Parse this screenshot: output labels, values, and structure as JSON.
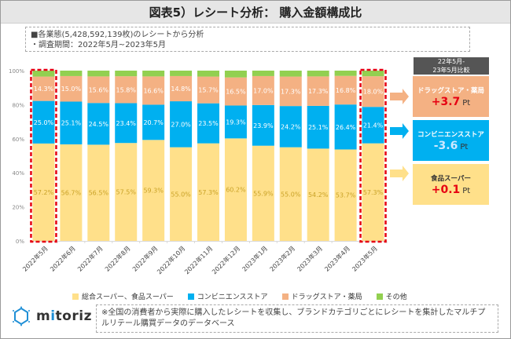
{
  "header": {
    "title": "図表5）レシート分析： 購入金額構成比"
  },
  "note": {
    "line1": "■各業態(5,428,592,139枚)のレシートから分析",
    "line2": "・調査期間：2022年5月~2023年5月"
  },
  "comparison": {
    "header_line1": "22年5月-",
    "header_line2": "23年5月比較",
    "items": [
      {
        "label": "ドラッグストア・薬局",
        "value": "+3.7",
        "unit": "Pt",
        "color": "#f4b183"
      },
      {
        "label": "コンビニエンスストア",
        "value": "-3.6",
        "unit": "Pt",
        "color": "#00b0f0"
      },
      {
        "label": "食品スーパー",
        "value": "+0.1",
        "unit": "Pt",
        "color": "#ffe08a"
      }
    ]
  },
  "footer": {
    "logo_text_pre": "m",
    "logo_text_i": "i",
    "logo_text_post": "toriz",
    "footnote": "※全国の消費者から実際に購入したレシートを収集し、ブランドカテゴリごとにレシートを集計したマルチプルリテール購買データのデータベース"
  },
  "chart_data": {
    "type": "bar",
    "stacked": true,
    "title": "購入金額構成比",
    "xlabel": "",
    "ylabel": "",
    "ylim": [
      0,
      100
    ],
    "yticks": [
      "0%",
      "20%",
      "40%",
      "60%",
      "80%",
      "100%"
    ],
    "categories": [
      "2022年5月",
      "2022年6月",
      "2022年7月",
      "2022年8月",
      "2022年9月",
      "2022年10月",
      "2022年11月",
      "2022年12月",
      "2023年1月",
      "2023年2月",
      "2023年3月",
      "2023年4月",
      "2023年5月"
    ],
    "highlighted": [
      "2022年5月",
      "2023年5月"
    ],
    "series": [
      {
        "name": "総合スーパー、食品スーパー",
        "color": "#ffe08a",
        "label_color": "#c9a227",
        "values": [
          57.2,
          56.7,
          56.5,
          57.5,
          59.3,
          55.0,
          57.3,
          60.2,
          55.9,
          55.0,
          54.2,
          53.7,
          57.3
        ]
      },
      {
        "name": "コンビニエンスストア",
        "color": "#00b0f0",
        "label_color": "#ffffff",
        "values": [
          25.0,
          25.1,
          24.5,
          23.4,
          20.7,
          27.0,
          23.5,
          19.3,
          23.9,
          24.2,
          25.1,
          26.4,
          21.4
        ]
      },
      {
        "name": "ドラッグストア・薬局",
        "color": "#f4b183",
        "label_color": "#ffffff",
        "values": [
          14.3,
          15.0,
          15.6,
          15.8,
          16.6,
          14.8,
          15.7,
          16.5,
          17.0,
          17.3,
          17.3,
          16.8,
          18.0
        ]
      },
      {
        "name": "その他",
        "color": "#92d050",
        "label_color": null,
        "values": [
          3.5,
          3.2,
          3.4,
          3.3,
          3.4,
          3.2,
          3.5,
          4.0,
          3.2,
          3.5,
          3.4,
          3.1,
          3.3
        ]
      }
    ],
    "legend_position": "bottom",
    "grid": false
  }
}
